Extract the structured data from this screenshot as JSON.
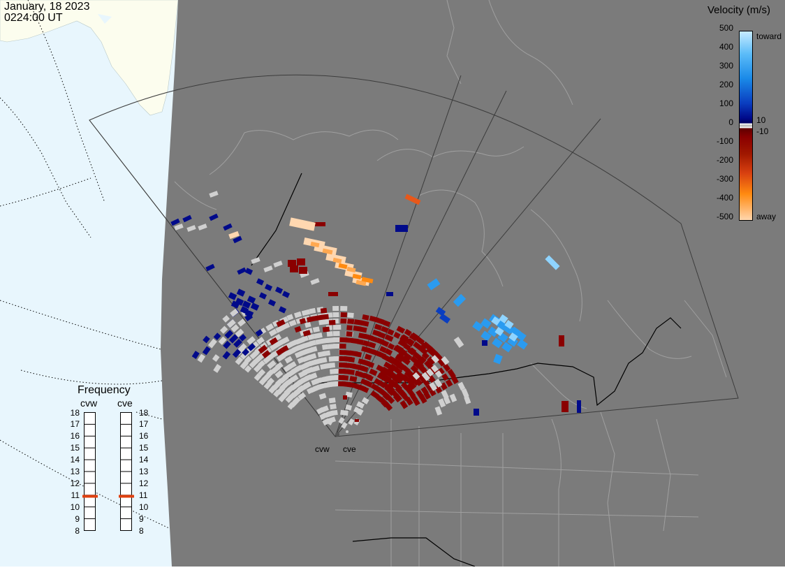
{
  "header": {
    "date": "January, 18 2023",
    "time": "0224:00 UT"
  },
  "legend": {
    "title": "Velocity (m/s)",
    "toward_label": "toward",
    "away_label": "away",
    "ticks": [
      "500",
      "400",
      "300",
      "200",
      "100",
      "0",
      "-100",
      "-200",
      "-300",
      "-400",
      "-500"
    ],
    "threshold_pos": "10",
    "threshold_neg": "-10",
    "colors": {
      "toward_light": "#c8ecff",
      "toward_mid": "#2a9bf0",
      "toward_dark": "#000a8a",
      "away_dark": "#8a0000",
      "away_mid": "#e8581a",
      "away_light": "#ffd7b0",
      "ground_scatter": "#d0d0d0"
    }
  },
  "frequency_panel": {
    "title": "Frequency",
    "radars": [
      {
        "name": "cvw",
        "frequency_mhz": 10.9
      },
      {
        "name": "cve",
        "frequency_mhz": 10.9
      }
    ],
    "scale": [
      "18",
      "17",
      "16",
      "15",
      "14",
      "13",
      "12",
      "11",
      "10",
      "9",
      "8"
    ]
  },
  "map": {
    "radar_sites": [
      "cvw",
      "cve"
    ],
    "colors": {
      "night": "#7b7b7b",
      "day_ocean": "#e8f6fd",
      "day_land": "#fcfdee",
      "boundary": "#a8a8a8",
      "border": "#000000"
    }
  }
}
